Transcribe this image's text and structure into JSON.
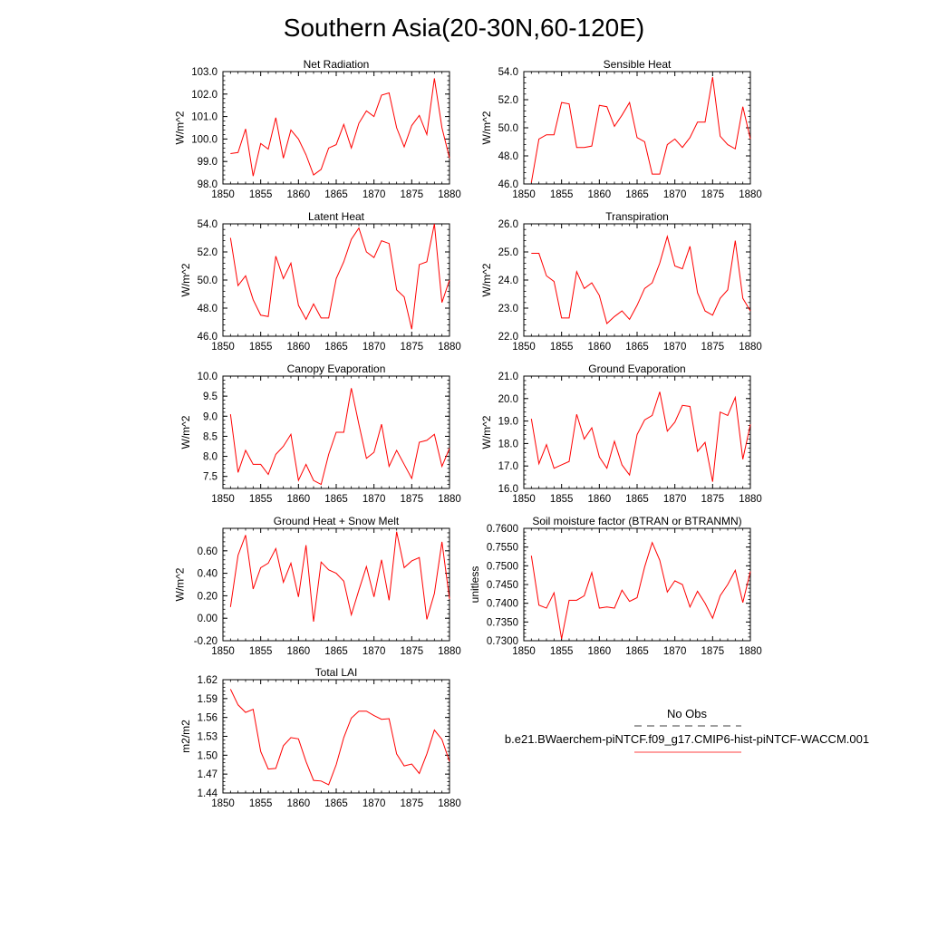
{
  "figure_title": "Southern Asia(20-30N,60-120E)",
  "legend": {
    "obs_label": "No Obs",
    "model_label": "b.e21.BWaerchem-piNTCF.f09_g17.CMIP6-hist-piNTCF-WACCM.001",
    "model_color": "#ff0000",
    "obs_color": "#000000"
  },
  "chart_data": [
    {
      "type": "line",
      "title": "Net Radiation",
      "ylabel": "W/m^2",
      "xlabel": "",
      "xlim": [
        1850,
        1880
      ],
      "ylim": [
        98.0,
        103.0
      ],
      "x_ticks": [
        "1850",
        "1855",
        "1860",
        "1865",
        "1870",
        "1875",
        "1880"
      ],
      "y_ticks": [
        "98.0",
        "99.0",
        "100.0",
        "101.0",
        "102.0",
        "103.0"
      ],
      "grid": false,
      "series": [
        {
          "color": "#ff0000",
          "x": [
            1851,
            1852,
            1853,
            1854,
            1855,
            1856,
            1857,
            1858,
            1859,
            1860,
            1861,
            1862,
            1863,
            1864,
            1865,
            1866,
            1867,
            1868,
            1869,
            1870,
            1871,
            1872,
            1873,
            1874,
            1875,
            1876,
            1877,
            1878,
            1879,
            1880
          ],
          "y": [
            99.35,
            99.4,
            100.45,
            98.35,
            99.8,
            99.55,
            100.95,
            99.15,
            100.4,
            100.0,
            99.3,
            98.4,
            98.65,
            99.6,
            99.75,
            100.65,
            99.6,
            100.7,
            101.25,
            101.0,
            101.95,
            102.05,
            100.5,
            99.65,
            100.6,
            101.05,
            100.2,
            102.7,
            100.5,
            99.15
          ]
        }
      ]
    },
    {
      "type": "line",
      "title": "Sensible Heat",
      "ylabel": "W/m^2",
      "xlabel": "",
      "xlim": [
        1850,
        1880
      ],
      "ylim": [
        46.0,
        54.0
      ],
      "x_ticks": [
        "1850",
        "1855",
        "1860",
        "1865",
        "1870",
        "1875",
        "1880"
      ],
      "y_ticks": [
        "46.0",
        "48.0",
        "50.0",
        "52.0",
        "54.0"
      ],
      "grid": false,
      "series": [
        {
          "color": "#ff0000",
          "x": [
            1851,
            1852,
            1853,
            1854,
            1855,
            1856,
            1857,
            1858,
            1859,
            1860,
            1861,
            1862,
            1863,
            1864,
            1865,
            1866,
            1867,
            1868,
            1869,
            1870,
            1871,
            1872,
            1873,
            1874,
            1875,
            1876,
            1877,
            1878,
            1879,
            1880
          ],
          "y": [
            46.1,
            49.2,
            49.5,
            49.5,
            51.8,
            51.7,
            48.6,
            48.6,
            48.7,
            51.6,
            51.5,
            50.1,
            50.9,
            51.8,
            49.3,
            49.0,
            46.7,
            46.7,
            48.8,
            49.2,
            48.6,
            49.3,
            50.4,
            50.4,
            53.6,
            49.4,
            48.8,
            48.5,
            51.5,
            49.2
          ]
        }
      ]
    },
    {
      "type": "line",
      "title": "Latent Heat",
      "ylabel": "W/m^2",
      "xlabel": "",
      "xlim": [
        1850,
        1880
      ],
      "ylim": [
        46.0,
        54.0
      ],
      "x_ticks": [
        "1850",
        "1855",
        "1860",
        "1865",
        "1870",
        "1875",
        "1880"
      ],
      "y_ticks": [
        "46.0",
        "48.0",
        "50.0",
        "52.0",
        "54.0"
      ],
      "grid": false,
      "series": [
        {
          "color": "#ff0000",
          "x": [
            1851,
            1852,
            1853,
            1854,
            1855,
            1856,
            1857,
            1858,
            1859,
            1860,
            1861,
            1862,
            1863,
            1864,
            1865,
            1866,
            1867,
            1868,
            1869,
            1870,
            1871,
            1872,
            1873,
            1874,
            1875,
            1876,
            1877,
            1878,
            1879,
            1880
          ],
          "y": [
            53.0,
            49.6,
            50.3,
            48.6,
            47.5,
            47.4,
            51.7,
            50.1,
            51.2,
            48.2,
            47.2,
            48.3,
            47.3,
            47.3,
            50.1,
            51.3,
            52.9,
            53.7,
            52.0,
            51.6,
            52.8,
            52.6,
            49.3,
            48.8,
            46.5,
            51.1,
            51.3,
            54.0,
            48.4,
            50.0
          ]
        }
      ]
    },
    {
      "type": "line",
      "title": "Transpiration",
      "ylabel": "W/m^2",
      "xlabel": "",
      "xlim": [
        1850,
        1880
      ],
      "ylim": [
        22.0,
        26.0
      ],
      "x_ticks": [
        "1850",
        "1855",
        "1860",
        "1865",
        "1870",
        "1875",
        "1880"
      ],
      "y_ticks": [
        "22.0",
        "23.0",
        "24.0",
        "25.0",
        "26.0"
      ],
      "grid": false,
      "series": [
        {
          "color": "#ff0000",
          "x": [
            1851,
            1852,
            1853,
            1854,
            1855,
            1856,
            1857,
            1858,
            1859,
            1860,
            1861,
            1862,
            1863,
            1864,
            1865,
            1866,
            1867,
            1868,
            1869,
            1870,
            1871,
            1872,
            1873,
            1874,
            1875,
            1876,
            1877,
            1878,
            1879,
            1880
          ],
          "y": [
            24.95,
            24.95,
            24.15,
            23.95,
            22.65,
            22.65,
            24.3,
            23.7,
            23.9,
            23.45,
            22.45,
            22.7,
            22.9,
            22.6,
            23.1,
            23.7,
            23.9,
            24.6,
            25.55,
            24.5,
            24.4,
            25.2,
            23.55,
            22.9,
            22.75,
            23.35,
            23.65,
            25.4,
            23.35,
            22.9
          ]
        }
      ]
    },
    {
      "type": "line",
      "title": "Canopy Evaporation",
      "ylabel": "W/m^2",
      "xlabel": "",
      "xlim": [
        1850,
        1880
      ],
      "ylim": [
        7.2,
        10.0
      ],
      "x_ticks": [
        "1850",
        "1855",
        "1860",
        "1865",
        "1870",
        "1875",
        "1880"
      ],
      "y_ticks": [
        "7.5",
        "8.0",
        "8.5",
        "9.0",
        "9.5",
        "10.0"
      ],
      "grid": false,
      "series": [
        {
          "color": "#ff0000",
          "x": [
            1851,
            1852,
            1853,
            1854,
            1855,
            1856,
            1857,
            1858,
            1859,
            1860,
            1861,
            1862,
            1863,
            1864,
            1865,
            1866,
            1867,
            1868,
            1869,
            1870,
            1871,
            1872,
            1873,
            1874,
            1875,
            1876,
            1877,
            1878,
            1879,
            1880
          ],
          "y": [
            9.05,
            7.6,
            8.15,
            7.8,
            7.8,
            7.55,
            8.05,
            8.25,
            8.55,
            7.4,
            7.8,
            7.4,
            7.3,
            8.05,
            8.6,
            8.6,
            9.7,
            8.8,
            7.95,
            8.1,
            8.8,
            7.75,
            8.15,
            7.8,
            7.45,
            8.35,
            8.4,
            8.55,
            7.75,
            8.2
          ]
        }
      ]
    },
    {
      "type": "line",
      "title": "Ground Evaporation",
      "ylabel": "W/m^2",
      "xlabel": "",
      "xlim": [
        1850,
        1880
      ],
      "ylim": [
        16.0,
        21.0
      ],
      "x_ticks": [
        "1850",
        "1855",
        "1860",
        "1865",
        "1870",
        "1875",
        "1880"
      ],
      "y_ticks": [
        "16.0",
        "17.0",
        "18.0",
        "19.0",
        "20.0",
        "21.0"
      ],
      "grid": false,
      "series": [
        {
          "color": "#ff0000",
          "x": [
            1851,
            1852,
            1853,
            1854,
            1855,
            1856,
            1857,
            1858,
            1859,
            1860,
            1861,
            1862,
            1863,
            1864,
            1865,
            1866,
            1867,
            1868,
            1869,
            1870,
            1871,
            1872,
            1873,
            1874,
            1875,
            1876,
            1877,
            1878,
            1879,
            1880
          ],
          "y": [
            19.1,
            17.1,
            17.95,
            16.9,
            17.05,
            17.2,
            19.3,
            18.2,
            18.7,
            17.4,
            16.9,
            18.1,
            17.05,
            16.6,
            18.4,
            19.05,
            19.25,
            20.3,
            18.55,
            18.95,
            19.7,
            19.65,
            17.65,
            18.05,
            16.3,
            19.4,
            19.25,
            20.05,
            17.3,
            18.85
          ]
        }
      ]
    },
    {
      "type": "line",
      "title": "Ground Heat + Snow Melt",
      "ylabel": "W/m^2",
      "xlabel": "",
      "xlim": [
        1850,
        1880
      ],
      "ylim": [
        -0.2,
        0.8
      ],
      "x_ticks": [
        "1850",
        "1855",
        "1860",
        "1865",
        "1870",
        "1875",
        "1880"
      ],
      "y_ticks": [
        "-0.20",
        "0.00",
        "0.20",
        "0.40",
        "0.60"
      ],
      "grid": false,
      "series": [
        {
          "color": "#ff0000",
          "x": [
            1851,
            1852,
            1853,
            1854,
            1855,
            1856,
            1857,
            1858,
            1859,
            1860,
            1861,
            1862,
            1863,
            1864,
            1865,
            1866,
            1867,
            1868,
            1869,
            1870,
            1871,
            1872,
            1873,
            1874,
            1875,
            1876,
            1877,
            1878,
            1879,
            1880
          ],
          "y": [
            0.1,
            0.56,
            0.74,
            0.26,
            0.45,
            0.49,
            0.62,
            0.32,
            0.49,
            0.19,
            0.65,
            -0.03,
            0.5,
            0.43,
            0.4,
            0.33,
            0.03,
            0.25,
            0.46,
            0.19,
            0.52,
            0.16,
            0.77,
            0.45,
            0.51,
            0.54,
            -0.01,
            0.22,
            0.68,
            0.17
          ]
        }
      ]
    },
    {
      "type": "line",
      "title": "Soil moisture factor (BTRAN or BTRANMN)",
      "ylabel": "unitless",
      "xlabel": "",
      "xlim": [
        1850,
        1880
      ],
      "ylim": [
        0.73,
        0.76
      ],
      "x_ticks": [
        "1850",
        "1855",
        "1860",
        "1865",
        "1870",
        "1875",
        "1880"
      ],
      "y_ticks": [
        "0.7300",
        "0.7350",
        "0.7400",
        "0.7450",
        "0.7500",
        "0.7550",
        "0.7600"
      ],
      "grid": false,
      "series": [
        {
          "color": "#ff0000",
          "x": [
            1851,
            1852,
            1853,
            1854,
            1855,
            1856,
            1857,
            1858,
            1859,
            1860,
            1861,
            1862,
            1863,
            1864,
            1865,
            1866,
            1867,
            1868,
            1869,
            1870,
            1871,
            1872,
            1873,
            1874,
            1875,
            1876,
            1877,
            1878,
            1879,
            1880
          ],
          "y": [
            0.7527,
            0.7395,
            0.7387,
            0.7428,
            0.7305,
            0.7408,
            0.7408,
            0.742,
            0.7482,
            0.7387,
            0.739,
            0.7387,
            0.7435,
            0.7405,
            0.7415,
            0.7497,
            0.7562,
            0.7515,
            0.743,
            0.746,
            0.745,
            0.739,
            0.7432,
            0.74,
            0.736,
            0.742,
            0.745,
            0.7488,
            0.7402,
            0.7485
          ]
        }
      ]
    },
    {
      "type": "line",
      "title": "Total LAI",
      "ylabel": "m2/m2",
      "xlabel": "",
      "xlim": [
        1850,
        1880
      ],
      "ylim": [
        1.44,
        1.62
      ],
      "x_ticks": [
        "1850",
        "1855",
        "1860",
        "1865",
        "1870",
        "1875",
        "1880"
      ],
      "y_ticks": [
        "1.44",
        "1.47",
        "1.50",
        "1.53",
        "1.56",
        "1.59",
        "1.62"
      ],
      "grid": false,
      "series": [
        {
          "color": "#ff0000",
          "x": [
            1851,
            1852,
            1853,
            1854,
            1855,
            1856,
            1857,
            1858,
            1859,
            1860,
            1861,
            1862,
            1863,
            1864,
            1865,
            1866,
            1867,
            1868,
            1869,
            1870,
            1871,
            1872,
            1873,
            1874,
            1875,
            1876,
            1877,
            1878,
            1879,
            1880
          ],
          "y": [
            1.605,
            1.58,
            1.568,
            1.573,
            1.506,
            1.478,
            1.479,
            1.515,
            1.528,
            1.526,
            1.49,
            1.46,
            1.459,
            1.453,
            1.485,
            1.528,
            1.559,
            1.57,
            1.57,
            1.563,
            1.557,
            1.558,
            1.502,
            1.483,
            1.486,
            1.471,
            1.502,
            1.54,
            1.525,
            1.49
          ]
        }
      ]
    }
  ]
}
